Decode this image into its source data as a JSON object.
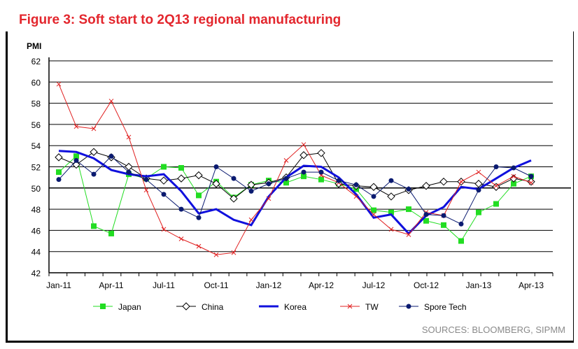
{
  "title": "Figure 3: Soft start to 2Q13 regional manufacturing",
  "sources": "SOURCES: BLOOMBERG, SIPMM",
  "chart_data": {
    "type": "line",
    "title": "Figure 3: Soft start to 2Q13 regional manufacturing",
    "ylabel": "PMI",
    "xlabel": "",
    "ylim": [
      42,
      62
    ],
    "yticks": [
      42,
      44,
      46,
      48,
      50,
      52,
      54,
      56,
      58,
      60,
      62
    ],
    "x": [
      "Jan-11",
      "Feb-11",
      "Mar-11",
      "Apr-11",
      "May-11",
      "Jun-11",
      "Jul-11",
      "Aug-11",
      "Sep-11",
      "Oct-11",
      "Nov-11",
      "Dec-11",
      "Jan-12",
      "Feb-12",
      "Mar-12",
      "Apr-12",
      "May-12",
      "Jun-12",
      "Jul-12",
      "Aug-12",
      "Sep-12",
      "Oct-12",
      "Nov-12",
      "Dec-12",
      "Jan-13",
      "Feb-13",
      "Mar-13",
      "Apr-13"
    ],
    "xtick_labels": [
      "Jan-11",
      "Apr-11",
      "Jul-11",
      "Oct-11",
      "Jan-12",
      "Apr-12",
      "Jul-12",
      "Oct-12",
      "Jan-13",
      "Apr-13"
    ],
    "legend_position": "bottom",
    "series": [
      {
        "name": "Japan",
        "color": "#22dd22",
        "marker": "square",
        "width": 1,
        "values": [
          51.5,
          53.0,
          46.4,
          45.7,
          51.3,
          50.9,
          52.0,
          51.9,
          49.3,
          50.6,
          49.1,
          50.3,
          50.7,
          50.5,
          51.1,
          50.8,
          50.4,
          49.9,
          47.9,
          47.7,
          48.0,
          46.9,
          46.5,
          45.0,
          47.7,
          48.5,
          50.4,
          51.1
        ]
      },
      {
        "name": "China",
        "color": "#000000",
        "marker": "diamond",
        "width": 1,
        "values": [
          52.9,
          52.2,
          53.4,
          52.9,
          52.0,
          50.9,
          50.7,
          50.9,
          51.2,
          50.4,
          49.0,
          50.3,
          50.5,
          51.0,
          53.1,
          53.3,
          50.4,
          50.2,
          50.1,
          49.2,
          49.8,
          50.2,
          50.6,
          50.6,
          50.4,
          50.1,
          50.9,
          50.6
        ]
      },
      {
        "name": "Korea",
        "color": "#1010dd",
        "marker": "none",
        "width": 3,
        "values": [
          53.5,
          53.4,
          52.8,
          51.7,
          51.3,
          51.1,
          51.3,
          49.7,
          47.6,
          48.0,
          47.0,
          46.5,
          49.2,
          51.0,
          52.1,
          52.0,
          51.0,
          49.4,
          47.2,
          47.5,
          45.7,
          47.4,
          48.2,
          50.1,
          49.9,
          50.9,
          51.9,
          52.6
        ]
      },
      {
        "name": "TW",
        "color": "#e02020",
        "marker": "x",
        "width": 1,
        "values": [
          59.8,
          55.8,
          55.6,
          58.2,
          54.8,
          49.8,
          46.1,
          45.2,
          44.5,
          43.7,
          43.9,
          47.0,
          49.0,
          52.6,
          54.1,
          51.2,
          50.5,
          49.2,
          47.5,
          46.1,
          45.6,
          47.7,
          47.4,
          50.6,
          51.5,
          50.2,
          51.1,
          50.5
        ]
      },
      {
        "name": "Spore Tech",
        "color": "#0a1a70",
        "marker": "circle",
        "width": 1,
        "values": [
          50.8,
          52.6,
          51.3,
          53.0,
          51.5,
          50.8,
          49.4,
          48.0,
          47.2,
          52.0,
          50.9,
          49.7,
          50.4,
          50.9,
          51.5,
          51.5,
          50.7,
          50.3,
          49.2,
          50.7,
          49.9,
          47.5,
          47.4,
          46.6,
          49.8,
          52.0,
          51.9,
          51.1
        ]
      }
    ]
  }
}
